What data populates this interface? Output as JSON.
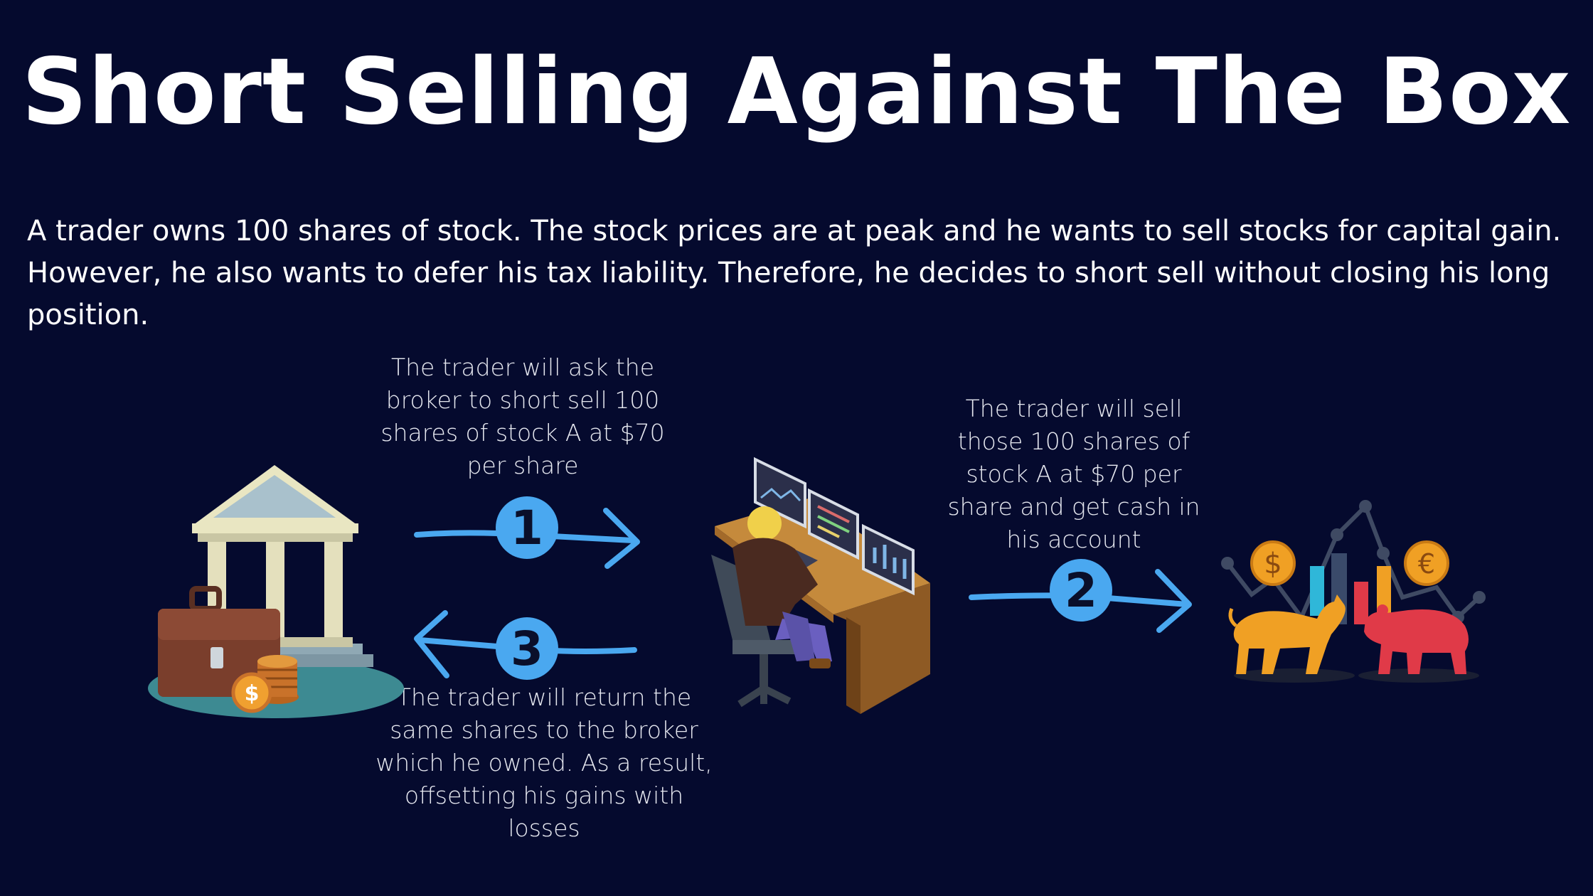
{
  "title": "Short Selling Against The Box",
  "intro": "A trader owns 100 shares of stock. The stock prices are at peak and he wants to sell stocks for capital gain. However, he also wants to defer his tax liability. Therefore, he decides to short sell without closing his long position.",
  "steps": [
    {
      "number": "1",
      "text": "The trader will ask the broker to short sell 100 shares of stock A at $70 per share"
    },
    {
      "number": "2",
      "text": "The trader will sell those 100 shares of stock A at $70 per share and get cash in his account"
    },
    {
      "number": "3",
      "text": "The trader will return the same shares to the broker which he owned. As a result, offsetting his gains with losses"
    }
  ],
  "icons": {
    "broker": "bank-with-briefcase-icon",
    "trader": "trader-at-desk-icon",
    "market": "bull-bear-market-icon",
    "coin_dollar": "$",
    "coin_euro": "€"
  },
  "colors": {
    "background": "#050a2e",
    "accent": "#4aa8f0",
    "text": "#ffffff"
  }
}
